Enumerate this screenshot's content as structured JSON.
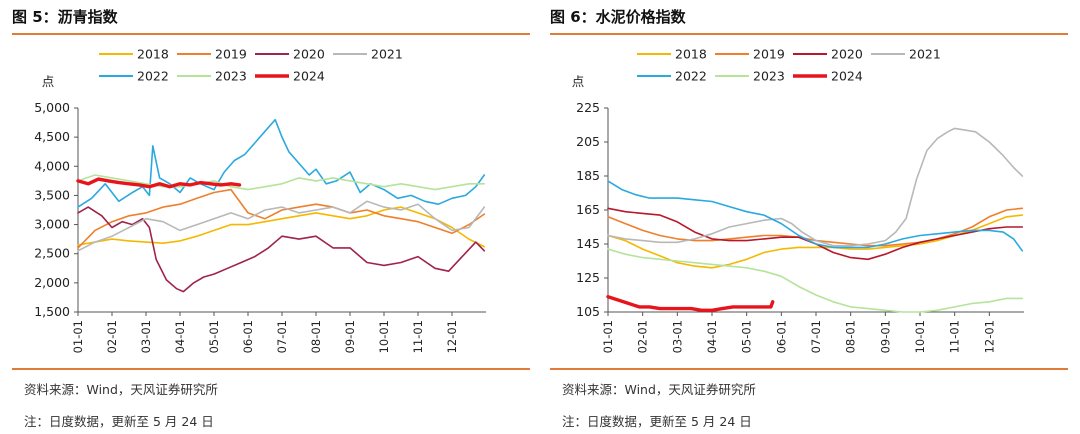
{
  "charts": [
    {
      "figure_title": "图 5：沥青指数",
      "source_note": "资料来源：Wind，天风证券研究所",
      "update_note": "注：日度数据，更新至 5 月 24 日",
      "chart_data": {
        "type": "line",
        "title": "",
        "ylabel": "点",
        "xlabel": "",
        "ylim": [
          1500,
          5000
        ],
        "yticks": [
          "1,500",
          "2,000",
          "2,500",
          "3,000",
          "3,500",
          "4,000",
          "4,500",
          "5,000"
        ],
        "ytick_values": [
          1500,
          2000,
          2500,
          3000,
          3500,
          4000,
          4500,
          5000
        ],
        "xticks": [
          "01-01",
          "02-01",
          "03-01",
          "04-01",
          "05-01",
          "06-01",
          "07-01",
          "08-01",
          "09-01",
          "10-01",
          "11-01",
          "12-01"
        ],
        "x_domain": [
          1,
          13
        ],
        "grid": false,
        "legend_position": "top",
        "series": [
          {
            "name": "2018",
            "color": "#f5b800",
            "width": 1.6,
            "x": [
              1,
              1.5,
              2,
              2.5,
              3,
              3.5,
              4,
              4.5,
              5,
              5.5,
              6,
              6.5,
              7,
              7.5,
              8,
              8.5,
              9,
              9.5,
              10,
              10.5,
              11,
              11.5,
              12,
              12.5,
              12.95
            ],
            "y": [
              2650,
              2700,
              2750,
              2720,
              2700,
              2680,
              2720,
              2800,
              2900,
              3000,
              3000,
              3050,
              3100,
              3150,
              3200,
              3150,
              3100,
              3150,
              3250,
              3300,
              3200,
              3100,
              2950,
              2750,
              2620
            ]
          },
          {
            "name": "2019",
            "color": "#ef7f2b",
            "width": 1.6,
            "x": [
              1,
              1.5,
              2,
              2.5,
              3,
              3.5,
              4,
              4.5,
              5,
              5.5,
              6,
              6.5,
              7,
              7.5,
              8,
              8.5,
              9,
              9.5,
              10,
              10.5,
              11,
              11.5,
              12,
              12.5,
              12.95
            ],
            "y": [
              2600,
              2900,
              3050,
              3150,
              3200,
              3300,
              3350,
              3450,
              3550,
              3600,
              3200,
              3100,
              3250,
              3300,
              3350,
              3300,
              3200,
              3250,
              3150,
              3100,
              3050,
              2950,
              2850,
              3000,
              3180
            ]
          },
          {
            "name": "2020",
            "color": "#a0234a",
            "width": 1.6,
            "x": [
              1,
              1.3,
              1.7,
              2,
              2.3,
              2.6,
              2.9,
              3.1,
              3.3,
              3.6,
              3.9,
              4.1,
              4.4,
              4.7,
              5,
              5.4,
              5.8,
              6.2,
              6.6,
              7,
              7.5,
              8,
              8.5,
              9,
              9.5,
              10,
              10.5,
              11,
              11.5,
              11.9,
              12.3,
              12.7,
              12.95
            ],
            "y": [
              3200,
              3300,
              3150,
              2950,
              3050,
              3000,
              3100,
              2950,
              2400,
              2050,
              1900,
              1850,
              2000,
              2100,
              2150,
              2250,
              2350,
              2450,
              2600,
              2800,
              2750,
              2800,
              2600,
              2600,
              2350,
              2300,
              2350,
              2450,
              2250,
              2200,
              2450,
              2700,
              2550
            ]
          },
          {
            "name": "2021",
            "color": "#b8b8b8",
            "width": 1.6,
            "x": [
              1,
              1.5,
              2,
              2.5,
              3,
              3.5,
              4,
              4.5,
              5,
              5.5,
              6,
              6.5,
              7,
              7.5,
              8,
              8.5,
              9,
              9.5,
              10,
              10.5,
              11,
              11.5,
              12,
              12.5,
              12.95
            ],
            "y": [
              2550,
              2700,
              2800,
              2950,
              3100,
              3050,
              2900,
              3000,
              3100,
              3200,
              3100,
              3250,
              3300,
              3200,
              3250,
              3300,
              3200,
              3400,
              3300,
              3250,
              3350,
              3100,
              2900,
              2950,
              3300
            ]
          },
          {
            "name": "2022",
            "color": "#2aa9df",
            "width": 1.6,
            "x": [
              1,
              1.4,
              1.8,
              2.2,
              2.6,
              2.9,
              3.1,
              3.2,
              3.4,
              3.7,
              4,
              4.3,
              4.6,
              5,
              5.3,
              5.6,
              5.9,
              6.2,
              6.5,
              6.8,
              7,
              7.2,
              7.5,
              7.8,
              8,
              8.3,
              8.6,
              9,
              9.3,
              9.6,
              10,
              10.4,
              10.8,
              11.2,
              11.6,
              12,
              12.4,
              12.7,
              12.95
            ],
            "y": [
              3300,
              3450,
              3700,
              3400,
              3550,
              3650,
              3500,
              4350,
              3800,
              3700,
              3550,
              3800,
              3700,
              3600,
              3900,
              4100,
              4200,
              4400,
              4600,
              4800,
              4500,
              4250,
              4050,
              3850,
              3950,
              3700,
              3750,
              3900,
              3550,
              3700,
              3600,
              3450,
              3500,
              3400,
              3350,
              3450,
              3500,
              3650,
              3850
            ]
          },
          {
            "name": "2023",
            "color": "#b5e39b",
            "width": 1.6,
            "x": [
              1,
              1.5,
              2,
              2.5,
              3,
              3.5,
              4,
              4.5,
              5,
              5.5,
              6,
              6.5,
              7,
              7.5,
              8,
              8.5,
              9,
              9.5,
              10,
              10.5,
              11,
              11.5,
              12,
              12.5,
              12.95
            ],
            "y": [
              3750,
              3850,
              3800,
              3750,
              3700,
              3650,
              3650,
              3700,
              3750,
              3650,
              3600,
              3650,
              3700,
              3800,
              3750,
              3800,
              3750,
              3700,
              3650,
              3700,
              3650,
              3600,
              3650,
              3700,
              3700
            ]
          },
          {
            "name": "2024",
            "color": "#e8141c",
            "width": 3.4,
            "x": [
              1,
              1.3,
              1.6,
              1.9,
              2.2,
              2.5,
              2.8,
              3.1,
              3.4,
              3.7,
              4,
              4.3,
              4.6,
              4.9,
              5.2,
              5.5,
              5.75
            ],
            "y": [
              3750,
              3700,
              3780,
              3750,
              3720,
              3700,
              3680,
              3650,
              3700,
              3650,
              3700,
              3680,
              3720,
              3700,
              3680,
              3700,
              3680
            ]
          }
        ]
      }
    },
    {
      "figure_title": "图 6：水泥价格指数",
      "source_note": "资料来源：Wind，天风证券研究所",
      "update_note": "注：日度数据，更新至 5 月 24 日",
      "chart_data": {
        "type": "line",
        "title": "",
        "ylabel": "点",
        "xlabel": "",
        "ylim": [
          105,
          225
        ],
        "yticks": [
          "105",
          "125",
          "145",
          "165",
          "185",
          "205",
          "225"
        ],
        "ytick_values": [
          105,
          125,
          145,
          165,
          185,
          205,
          225
        ],
        "xticks": [
          "01-01",
          "02-01",
          "03-01",
          "04-01",
          "05-01",
          "06-01",
          "07-01",
          "08-01",
          "09-01",
          "10-01",
          "11-01",
          "12-01"
        ],
        "x_domain": [
          1,
          13
        ],
        "grid": false,
        "legend_position": "top",
        "series": [
          {
            "name": "2018",
            "color": "#f5b800",
            "width": 1.6,
            "x": [
              1,
              1.5,
              2,
              2.5,
              3,
              3.5,
              4,
              4.5,
              5,
              5.5,
              6,
              6.5,
              7,
              7.5,
              8,
              8.5,
              9,
              9.5,
              10,
              10.5,
              11,
              11.5,
              12,
              12.5,
              12.95
            ],
            "y": [
              150,
              147,
              142,
              138,
              134,
              132,
              131,
              133,
              136,
              140,
              142,
              143,
              143,
              143,
              142,
              142,
              143,
              144,
              145,
              147,
              150,
              153,
              157,
              161,
              162
            ]
          },
          {
            "name": "2019",
            "color": "#ef7f2b",
            "width": 1.6,
            "x": [
              1,
              1.5,
              2,
              2.5,
              3,
              3.5,
              4,
              4.5,
              5,
              5.5,
              6,
              6.5,
              7,
              7.5,
              8,
              8.5,
              9,
              9.5,
              10,
              10.5,
              11,
              11.5,
              12,
              12.5,
              12.95
            ],
            "y": [
              161,
              157,
              153,
              150,
              148,
              147,
              147,
              148,
              149,
              150,
              150,
              149,
              147,
              146,
              145,
              144,
              144,
              145,
              146,
              148,
              151,
              155,
              161,
              165,
              166
            ]
          },
          {
            "name": "2020",
            "color": "#b7182b",
            "width": 1.6,
            "x": [
              1,
              1.5,
              2,
              2.5,
              3,
              3.5,
              4,
              4.5,
              5,
              5.5,
              6,
              6.5,
              7,
              7.5,
              8,
              8.5,
              9,
              9.5,
              10,
              10.5,
              11,
              11.5,
              12,
              12.5,
              12.95
            ],
            "y": [
              166,
              164,
              163,
              162,
              158,
              152,
              148,
              147,
              147,
              148,
              149,
              149,
              145,
              140,
              137,
              136,
              139,
              143,
              146,
              148,
              150,
              152,
              154,
              155,
              155
            ]
          },
          {
            "name": "2021",
            "color": "#b8b8b8",
            "width": 1.6,
            "x": [
              1,
              1.5,
              2,
              2.5,
              3,
              3.5,
              4,
              4.5,
              5,
              5.5,
              6,
              6.3,
              6.6,
              7,
              7.5,
              8,
              8.5,
              9,
              9.3,
              9.6,
              9.9,
              10.2,
              10.5,
              10.8,
              11,
              11.3,
              11.6,
              12,
              12.4,
              12.7,
              12.95
            ],
            "y": [
              150,
              148,
              147,
              146,
              146,
              148,
              151,
              155,
              157,
              159,
              160,
              157,
              152,
              147,
              144,
              144,
              145,
              147,
              152,
              160,
              183,
              200,
              207,
              211,
              213,
              212,
              211,
              205,
              197,
              190,
              185
            ]
          },
          {
            "name": "2022",
            "color": "#2aa9df",
            "width": 1.6,
            "x": [
              1,
              1.4,
              1.8,
              2.2,
              2.6,
              3,
              3.5,
              4,
              4.5,
              5,
              5.5,
              6,
              6.5,
              7,
              7.5,
              8,
              8.5,
              9,
              9.5,
              10,
              10.5,
              11,
              11.5,
              12,
              12.4,
              12.7,
              12.95
            ],
            "y": [
              182,
              177,
              174,
              172,
              172,
              172,
              171,
              170,
              167,
              164,
              162,
              157,
              150,
              145,
              143,
              143,
              143,
              145,
              148,
              150,
              151,
              152,
              153,
              153,
              152,
              148,
              141
            ]
          },
          {
            "name": "2023",
            "color": "#b5e39b",
            "width": 1.6,
            "x": [
              1,
              1.5,
              2,
              2.5,
              3,
              3.5,
              4,
              4.5,
              5,
              5.5,
              6,
              6.5,
              7,
              7.5,
              8,
              8.5,
              9,
              9.5,
              10,
              10.5,
              11,
              11.5,
              12,
              12.5,
              12.95
            ],
            "y": [
              142,
              139,
              137,
              136,
              135,
              134,
              133,
              132,
              131,
              129,
              126,
              120,
              115,
              111,
              108,
              107,
              106,
              105,
              105,
              106,
              108,
              110,
              111,
              113,
              113
            ]
          },
          {
            "name": "2024",
            "color": "#e8141c",
            "width": 3.4,
            "x": [
              1,
              1.3,
              1.6,
              1.9,
              2.2,
              2.5,
              2.8,
              3.1,
              3.4,
              3.7,
              4,
              4.3,
              4.6,
              4.9,
              5.2,
              5.5,
              5.7,
              5.75
            ],
            "y": [
              114,
              112,
              110,
              108,
              108,
              107,
              107,
              107,
              107,
              106,
              106,
              107,
              108,
              108,
              108,
              108,
              108,
              111
            ]
          }
        ]
      }
    }
  ]
}
